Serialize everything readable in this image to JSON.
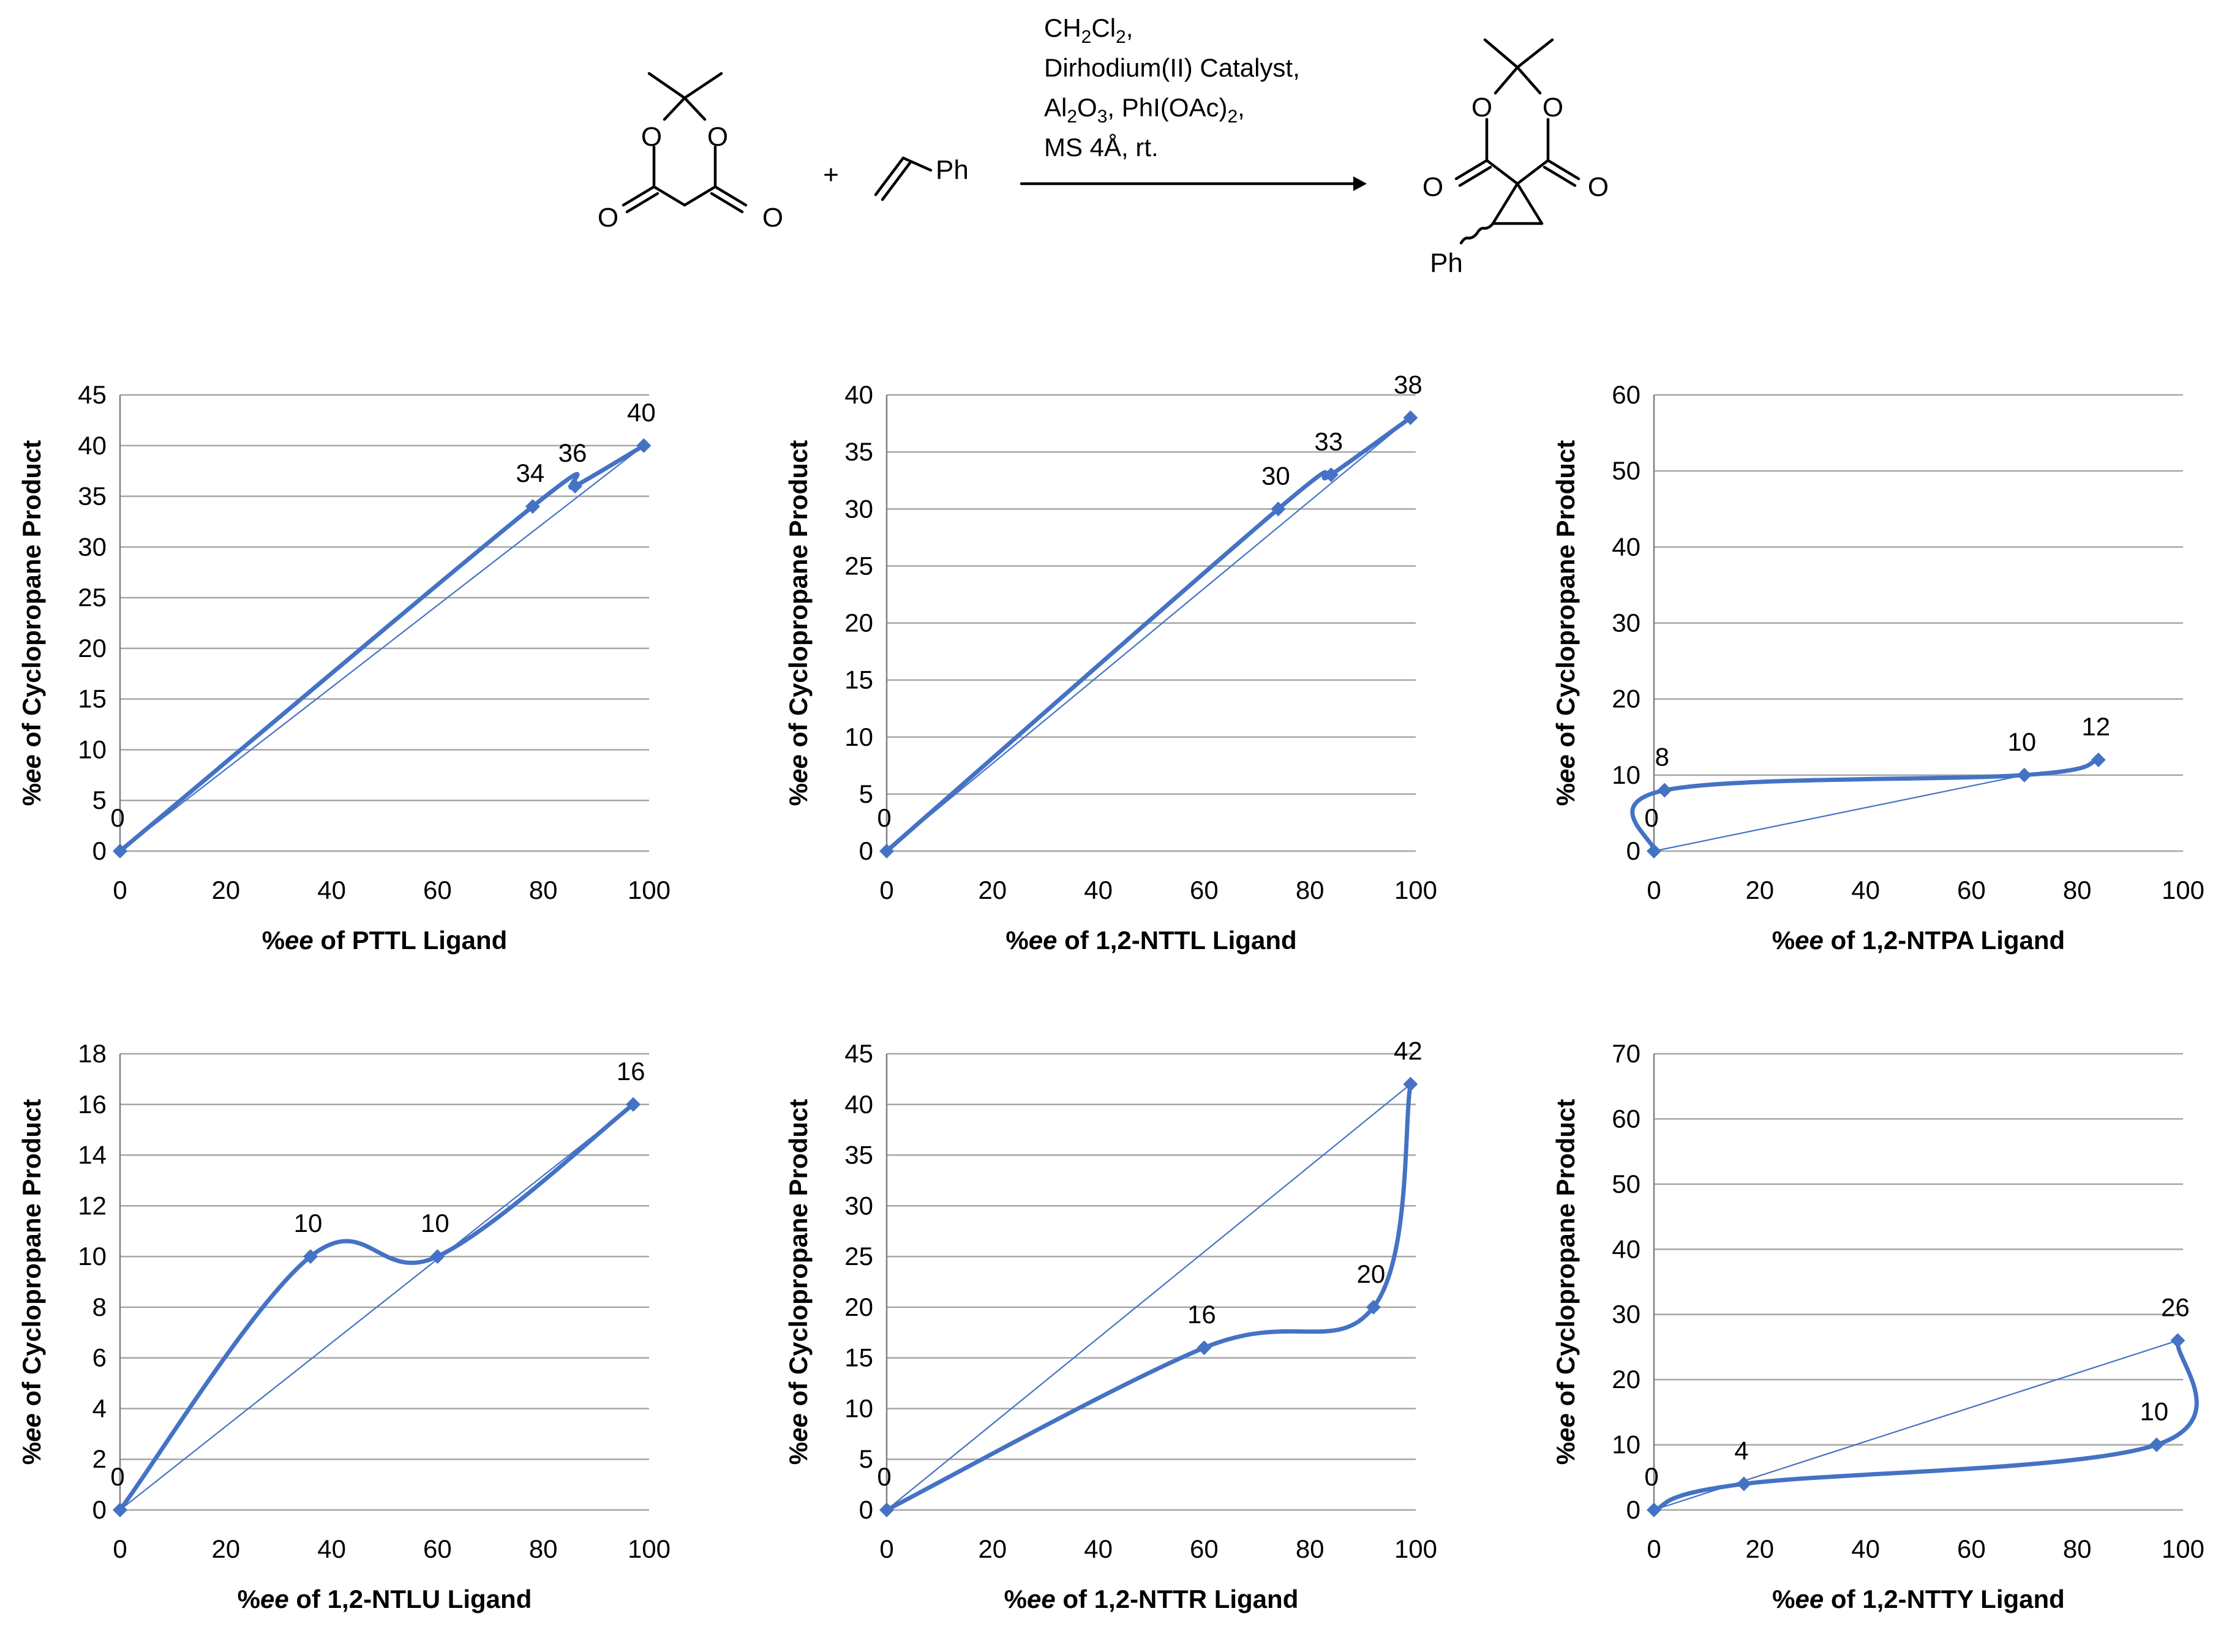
{
  "reaction": {
    "reagent_plus": "+",
    "alkene_group": "Ph",
    "product_group": "Ph",
    "atom_O": "O",
    "conditions": {
      "line1_main": "CH",
      "line1_sub1": "2",
      "line1_mid": "Cl",
      "line1_sub2": "2",
      "line1_end": ",",
      "line2": "Dirhodium(II) Catalyst,",
      "line3_main": "Al",
      "line3_sub1": "2",
      "line3_mid": "O",
      "line3_sub2": "3",
      "line3_end": ", PhI(OAc)",
      "line3_sub3": "2",
      "line3_comma": ",",
      "line4": "MS 4Å, rt."
    }
  },
  "colors": {
    "series": "#4472C4",
    "grid": "#A6A6A6",
    "axis": "#808080"
  },
  "chart_data": [
    {
      "type": "line",
      "ylabel_prefix": "%",
      "ylabel_italic": "ee",
      "ylabel_rest": " of Cyclopropane Product",
      "xlabel_prefix": "%",
      "xlabel_italic": "ee",
      "xlabel_rest": " of PTTL Ligand",
      "xlim": [
        0,
        100
      ],
      "ylim": [
        0,
        45
      ],
      "xticks": [
        0,
        20,
        40,
        60,
        80,
        100
      ],
      "yticks": [
        0,
        5,
        10,
        15,
        20,
        25,
        30,
        35,
        40,
        45
      ],
      "x": [
        0,
        78,
        86,
        99
      ],
      "y": [
        0,
        34,
        36,
        40
      ],
      "labels": [
        "0",
        "34",
        "36",
        "40"
      ],
      "reference_line": {
        "x": [
          0,
          99
        ],
        "y": [
          0,
          40
        ]
      }
    },
    {
      "type": "line",
      "ylabel_prefix": "%",
      "ylabel_italic": "ee",
      "ylabel_rest": " of Cyclopropane Product",
      "xlabel_prefix": "%",
      "xlabel_italic": "ee",
      "xlabel_rest": " of 1,2-NTTL Ligand",
      "xlim": [
        0,
        100
      ],
      "ylim": [
        0,
        40
      ],
      "xticks": [
        0,
        20,
        40,
        60,
        80,
        100
      ],
      "yticks": [
        0,
        5,
        10,
        15,
        20,
        25,
        30,
        35,
        40
      ],
      "x": [
        0,
        74,
        84,
        99
      ],
      "y": [
        0,
        30,
        33,
        38
      ],
      "labels": [
        "0",
        "30",
        "33",
        "38"
      ],
      "reference_line": {
        "x": [
          0,
          99
        ],
        "y": [
          0,
          38
        ]
      }
    },
    {
      "type": "line",
      "ylabel_prefix": "%",
      "ylabel_italic": "ee",
      "ylabel_rest": " of Cyclopropane Product",
      "xlabel_prefix": "%",
      "xlabel_italic": "ee",
      "xlabel_rest": " of 1,2-NTPA Ligand",
      "xlim": [
        0,
        100
      ],
      "ylim": [
        0,
        60
      ],
      "xticks": [
        0,
        20,
        40,
        60,
        80,
        100
      ],
      "yticks": [
        0,
        10,
        20,
        30,
        40,
        50,
        60
      ],
      "x": [
        0,
        2,
        70,
        84
      ],
      "y": [
        0,
        8,
        10,
        12
      ],
      "labels": [
        "0",
        "8",
        "10",
        "12"
      ],
      "reference_line": {
        "x": [
          0,
          70
        ],
        "y": [
          0,
          10
        ]
      }
    },
    {
      "type": "line",
      "ylabel_prefix": "%",
      "ylabel_italic": "ee",
      "ylabel_rest": " of Cyclopropane Product",
      "xlabel_prefix": "%",
      "xlabel_italic": "ee",
      "xlabel_rest": " of 1,2-NTLU Ligand",
      "xlim": [
        0,
        100
      ],
      "ylim": [
        0,
        18
      ],
      "xticks": [
        0,
        20,
        40,
        60,
        80,
        100
      ],
      "yticks": [
        0,
        2,
        4,
        6,
        8,
        10,
        12,
        14,
        16,
        18
      ],
      "x": [
        0,
        36,
        60,
        97
      ],
      "y": [
        0,
        10,
        10,
        16
      ],
      "labels": [
        "0",
        "10",
        "10",
        "16"
      ],
      "reference_line": {
        "x": [
          0,
          97
        ],
        "y": [
          0,
          16
        ]
      }
    },
    {
      "type": "line",
      "ylabel_prefix": "%",
      "ylabel_italic": "ee",
      "ylabel_rest": " of Cyclopropane Product",
      "xlabel_prefix": "%",
      "xlabel_italic": "ee",
      "xlabel_rest": " of 1,2-NTTR Ligand",
      "xlim": [
        0,
        100
      ],
      "ylim": [
        0,
        45
      ],
      "xticks": [
        0,
        20,
        40,
        60,
        80,
        100
      ],
      "yticks": [
        0,
        5,
        10,
        15,
        20,
        25,
        30,
        35,
        40,
        45
      ],
      "x": [
        0,
        60,
        92,
        99
      ],
      "y": [
        0,
        16,
        20,
        42
      ],
      "labels": [
        "0",
        "16",
        "20",
        "42"
      ],
      "reference_line": {
        "x": [
          0,
          99
        ],
        "y": [
          0,
          42
        ]
      }
    },
    {
      "type": "line",
      "ylabel_prefix": "%",
      "ylabel_italic": "ee",
      "ylabel_rest": " of Cyclopropane Product",
      "xlabel_prefix": "%",
      "xlabel_italic": "ee",
      "xlabel_rest": " of 1,2-NTTY Ligand",
      "xlim": [
        0,
        100
      ],
      "ylim": [
        0,
        70
      ],
      "xticks": [
        0,
        20,
        40,
        60,
        80,
        100
      ],
      "yticks": [
        0,
        10,
        20,
        30,
        40,
        50,
        60,
        70
      ],
      "x": [
        0,
        17,
        95,
        99
      ],
      "y": [
        0,
        4,
        10,
        26
      ],
      "labels": [
        "0",
        "4",
        "10",
        "26"
      ],
      "reference_line": {
        "x": [
          0,
          99
        ],
        "y": [
          0,
          26
        ]
      }
    }
  ]
}
